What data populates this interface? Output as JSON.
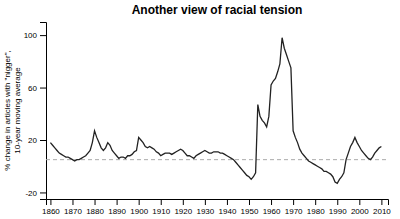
{
  "chart_data": {
    "type": "line",
    "title": "Another view of racial tension",
    "ylabel": "% change in articles with \"nigger\",\n10-year moving average",
    "xlim": [
      1858,
      2013
    ],
    "ylim": [
      -25,
      110
    ],
    "xticks": [
      1860,
      1870,
      1880,
      1890,
      1900,
      1910,
      1920,
      1930,
      1940,
      1950,
      1960,
      1970,
      1980,
      1990,
      2000,
      2010
    ],
    "yticks": [
      -20,
      20,
      60,
      100
    ],
    "color": "#222222",
    "grid": false,
    "reference_lines": [
      {
        "y": 5,
        "color": "#aaaaaa",
        "line_style": "dashed"
      }
    ],
    "x": [
      1860,
      1861,
      1862,
      1863,
      1864,
      1865,
      1866,
      1867,
      1868,
      1869,
      1870,
      1871,
      1872,
      1873,
      1874,
      1875,
      1876,
      1877,
      1878,
      1879,
      1880,
      1881,
      1882,
      1883,
      1884,
      1885,
      1886,
      1887,
      1888,
      1889,
      1890,
      1891,
      1892,
      1893,
      1894,
      1895,
      1896,
      1897,
      1898,
      1899,
      1900,
      1901,
      1902,
      1903,
      1904,
      1905,
      1906,
      1907,
      1908,
      1909,
      1910,
      1911,
      1912,
      1913,
      1914,
      1915,
      1916,
      1917,
      1918,
      1919,
      1920,
      1921,
      1922,
      1923,
      1924,
      1925,
      1926,
      1927,
      1928,
      1929,
      1930,
      1931,
      1932,
      1933,
      1934,
      1935,
      1936,
      1937,
      1938,
      1939,
      1940,
      1941,
      1942,
      1943,
      1944,
      1945,
      1946,
      1947,
      1948,
      1949,
      1950,
      1951,
      1952,
      1953,
      1954,
      1955,
      1956,
      1957,
      1958,
      1959,
      1960,
      1961,
      1962,
      1963,
      1964,
      1965,
      1966,
      1967,
      1968,
      1969,
      1970,
      1971,
      1972,
      1973,
      1974,
      1975,
      1976,
      1977,
      1978,
      1979,
      1980,
      1981,
      1982,
      1983,
      1984,
      1985,
      1986,
      1987,
      1988,
      1989,
      1990,
      1991,
      1992,
      1993,
      1994,
      1995,
      1996,
      1997,
      1998,
      1999,
      2000,
      2001,
      2002,
      2003,
      2004,
      2005,
      2006,
      2007,
      2008,
      2009,
      2010
    ],
    "values": [
      18,
      16,
      14,
      12,
      10,
      9,
      8,
      7,
      7,
      6,
      5,
      4,
      5,
      5,
      6,
      7,
      8,
      10,
      12,
      18,
      27,
      22,
      18,
      14,
      12,
      14,
      18,
      16,
      12,
      10,
      8,
      6,
      7,
      7,
      6,
      8,
      8,
      9,
      11,
      12,
      22,
      20,
      18,
      15,
      14,
      15,
      14,
      13,
      11,
      10,
      8,
      9,
      10,
      10,
      10,
      9,
      10,
      11,
      12,
      13,
      12,
      10,
      8,
      8,
      7,
      6,
      8,
      9,
      10,
      11,
      12,
      11,
      10,
      10,
      11,
      11,
      11,
      10,
      10,
      9,
      8,
      7,
      6,
      5,
      3,
      1,
      -1,
      -3,
      -5,
      -7,
      -8,
      -10,
      -8,
      -5,
      47,
      38,
      35,
      33,
      30,
      38,
      62,
      65,
      67,
      72,
      78,
      98,
      90,
      85,
      80,
      75,
      27,
      22,
      18,
      13,
      10,
      8,
      6,
      4,
      3,
      2,
      1,
      0,
      -1,
      -2,
      -4,
      -4,
      -5,
      -6,
      -8,
      -12,
      -13,
      -10,
      -8,
      -5,
      5,
      10,
      15,
      18,
      22,
      18,
      15,
      12,
      10,
      8,
      6,
      5,
      7,
      10,
      12,
      14,
      15
    ]
  }
}
